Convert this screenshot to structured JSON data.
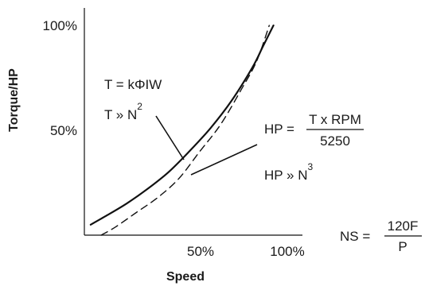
{
  "chart_data": {
    "type": "line",
    "title": "",
    "xlabel": "Speed",
    "ylabel": "Torque/HP",
    "x_ticks": [
      "50%",
      "100%"
    ],
    "y_ticks": [
      "100%",
      "50%"
    ],
    "xlim": [
      0,
      100
    ],
    "ylim": [
      0,
      100
    ],
    "grid": false,
    "legend": "none",
    "series": [
      {
        "style": "solid",
        "color": "#111111",
        "x": [
          3,
          10,
          20,
          30,
          40,
          50,
          60,
          70,
          80,
          85,
          90
        ],
        "y": [
          5,
          9,
          15,
          22,
          30,
          40,
          51,
          64,
          80,
          90,
          100
        ]
      },
      {
        "style": "dashed",
        "color": "#111111",
        "x": [
          8,
          15,
          25,
          35,
          45,
          55,
          65,
          75,
          82,
          88
        ],
        "y": [
          0,
          4,
          11,
          18,
          27,
          40,
          53,
          70,
          83,
          100
        ]
      }
    ],
    "annotations": {
      "torque_eq_1": "T = kΦIW",
      "torque_eq_2": {
        "base": "T » N",
        "sup": "2"
      },
      "hp_eq": {
        "lhs": "HP =",
        "num": "T x RPM",
        "den": "5250"
      },
      "hp_prop": {
        "base": "HP » N",
        "sup": "3"
      },
      "ns_eq": {
        "lhs": "NS =",
        "num": "120F",
        "den": "P"
      }
    }
  }
}
